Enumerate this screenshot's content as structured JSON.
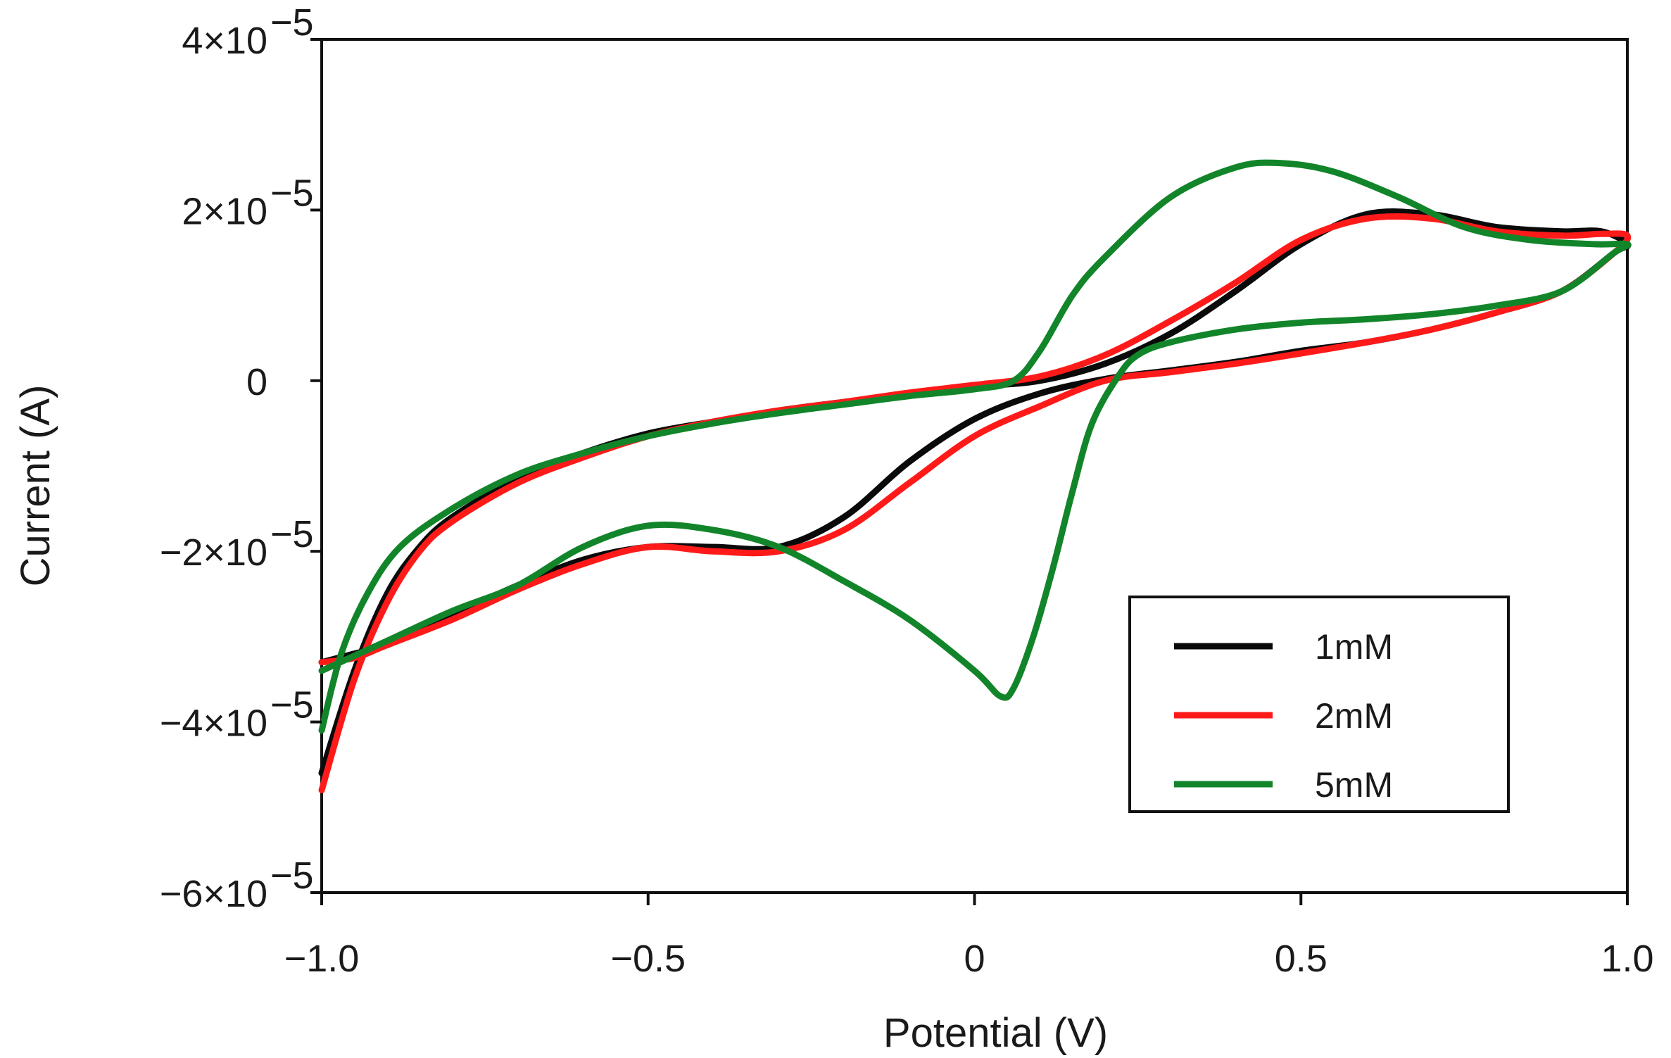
{
  "chart_data": {
    "type": "line",
    "title": "",
    "xlabel": "Potential (V)",
    "ylabel": "Current (A)",
    "xlim": [
      -1.0,
      1.0
    ],
    "ylim": [
      -6e-05,
      4e-05
    ],
    "x_ticks": [
      -1.0,
      -0.5,
      0,
      0.5,
      1.0
    ],
    "x_tick_labels": [
      "−1.0",
      "−0.5",
      "0",
      "0.5",
      "1.0"
    ],
    "y_ticks": [
      4e-05,
      2e-05,
      0,
      -2e-05,
      -4e-05,
      -6e-05
    ],
    "y_tick_labels": [
      {
        "mantissa": "4×10",
        "exp": "−5"
      },
      {
        "mantissa": "2×10",
        "exp": "−5"
      },
      {
        "mantissa": "0",
        "exp": ""
      },
      {
        "mantissa": "−2×10",
        "exp": "−5"
      },
      {
        "mantissa": "−4×10",
        "exp": "−5"
      },
      {
        "mantissa": "−6×10",
        "exp": "−5"
      }
    ],
    "grid": false,
    "legend_position": "bottom-right",
    "series": [
      {
        "name": "1mM",
        "color": "#0a0a0a",
        "x": [
          -1.0,
          -0.95,
          -0.9,
          -0.85,
          -0.8,
          -0.7,
          -0.6,
          -0.5,
          -0.4,
          -0.3,
          -0.2,
          -0.1,
          0.0,
          0.1,
          0.2,
          0.3,
          0.4,
          0.5,
          0.6,
          0.7,
          0.8,
          0.9,
          0.96,
          1.0,
          0.98,
          0.9,
          0.8,
          0.7,
          0.6,
          0.5,
          0.4,
          0.3,
          0.2,
          0.1,
          0.0,
          -0.1,
          -0.2,
          -0.3,
          -0.4,
          -0.5,
          -0.6,
          -0.7,
          -0.8,
          -0.9,
          -0.95,
          -1.0
        ],
        "y": [
          -4.6e-05,
          -3.4e-05,
          -2.5e-05,
          -1.95e-05,
          -1.6e-05,
          -1.15e-05,
          -8.5e-06,
          -6.2e-06,
          -4.8e-06,
          -3.5e-06,
          -2.5e-06,
          -1.5e-06,
          -7e-07,
          0.0,
          2e-06,
          5.5e-06,
          1.05e-05,
          1.6e-05,
          1.95e-05,
          1.95e-05,
          1.8e-05,
          1.75e-05,
          1.75e-05,
          1.6e-05,
          1.5e-05,
          1.05e-05,
          8e-06,
          6e-06,
          4.5e-06,
          3.5e-06,
          2.2e-06,
          1.2e-06,
          2e-07,
          -1.5e-06,
          -4.5e-06,
          -9.5e-06,
          -1.6e-05,
          -1.95e-05,
          -1.95e-05,
          -1.95e-05,
          -2.1e-05,
          -2.4e-05,
          -2.75e-05,
          -3.1e-05,
          -3.2e-05,
          -3.3e-05
        ]
      },
      {
        "name": "2mM",
        "color": "#ff1a1a",
        "x": [
          -1.0,
          -0.95,
          -0.9,
          -0.85,
          -0.8,
          -0.7,
          -0.6,
          -0.5,
          -0.4,
          -0.3,
          -0.2,
          -0.1,
          0.0,
          0.1,
          0.2,
          0.3,
          0.4,
          0.5,
          0.6,
          0.7,
          0.8,
          0.9,
          0.96,
          1.0,
          0.98,
          0.9,
          0.8,
          0.7,
          0.6,
          0.5,
          0.4,
          0.3,
          0.2,
          0.1,
          0.0,
          -0.1,
          -0.2,
          -0.3,
          -0.4,
          -0.5,
          -0.6,
          -0.7,
          -0.8,
          -0.9,
          -0.95,
          -1.0
        ],
        "y": [
          -4.8e-05,
          -3.5e-05,
          -2.6e-05,
          -2e-05,
          -1.65e-05,
          -1.2e-05,
          -9e-06,
          -6.5e-06,
          -4.8e-06,
          -3.5e-06,
          -2.5e-06,
          -1.4e-06,
          -5e-07,
          5e-07,
          3e-06,
          7e-06,
          1.15e-05,
          1.65e-05,
          1.9e-05,
          1.9e-05,
          1.75e-05,
          1.7e-05,
          1.72e-05,
          1.7e-05,
          1.5e-05,
          1.05e-05,
          8e-06,
          6e-06,
          4.5e-06,
          3.2e-06,
          2e-06,
          1e-06,
          0.0,
          -3e-06,
          -6.5e-06,
          -1.2e-05,
          -1.75e-05,
          -2e-05,
          -2e-05,
          -1.95e-05,
          -2.15e-05,
          -2.45e-05,
          -2.8e-05,
          -3.1e-05,
          -3.25e-05,
          -3.3e-05
        ]
      },
      {
        "name": "5mM",
        "color": "#12852a",
        "x": [
          -1.0,
          -0.97,
          -0.93,
          -0.88,
          -0.8,
          -0.7,
          -0.6,
          -0.5,
          -0.4,
          -0.3,
          -0.2,
          -0.1,
          0.0,
          0.06,
          0.1,
          0.15,
          0.2,
          0.3,
          0.4,
          0.47,
          0.55,
          0.65,
          0.75,
          0.85,
          0.95,
          1.0,
          0.98,
          0.9,
          0.8,
          0.7,
          0.6,
          0.5,
          0.4,
          0.3,
          0.25,
          0.22,
          0.18,
          0.15,
          0.12,
          0.09,
          0.06,
          0.04,
          0.0,
          -0.1,
          -0.2,
          -0.3,
          -0.4,
          -0.5,
          -0.6,
          -0.7,
          -0.8,
          -0.9,
          -1.0
        ],
        "y": [
          -4.1e-05,
          -3.2e-05,
          -2.5e-05,
          -1.95e-05,
          -1.5e-05,
          -1.1e-05,
          -8.5e-06,
          -6.5e-06,
          -5e-06,
          -3.8e-06,
          -2.8e-06,
          -1.8e-06,
          -1e-06,
          0.0,
          3.5e-06,
          1e-05,
          1.45e-05,
          2.15e-05,
          2.5e-05,
          2.55e-05,
          2.45e-05,
          2.15e-05,
          1.8e-05,
          1.65e-05,
          1.6e-05,
          1.6e-05,
          1.5e-05,
          1.05e-05,
          8.8e-06,
          7.8e-06,
          7.2e-06,
          6.8e-06,
          6e-06,
          4.5e-06,
          3e-06,
          5e-07,
          -5e-06,
          -1.3e-05,
          -2.2e-05,
          -3e-05,
          -3.6e-05,
          -3.7e-05,
          -3.4e-05,
          -2.8e-05,
          -2.35e-05,
          -1.95e-05,
          -1.75e-05,
          -1.7e-05,
          -1.95e-05,
          -2.4e-05,
          -2.7e-05,
          -3.05e-05,
          -3.4e-05
        ]
      }
    ]
  }
}
